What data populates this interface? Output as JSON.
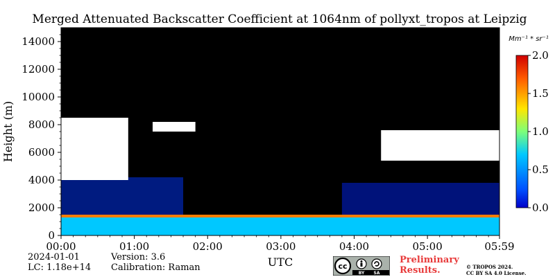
{
  "chart_data": {
    "type": "heatmap",
    "title": "Merged Attenuated Backscatter Coefficient at 1064nm of pollyxt_tropos at Leipzig",
    "xlabel": "UTC",
    "ylabel": "Height (m)",
    "x_ticks": [
      "00:00",
      "01:00",
      "02:00",
      "03:00",
      "04:00",
      "05:00",
      "05:59"
    ],
    "y_ticks": [
      "0",
      "2000",
      "4000",
      "6000",
      "8000",
      "10000",
      "12000",
      "14000"
    ],
    "xlim_minutes": [
      0,
      359
    ],
    "ylim": [
      0,
      15000
    ],
    "colorbar": {
      "label": "Mm⁻¹ * sr⁻¹",
      "ticks": [
        "0.0",
        "0.5",
        "1.0",
        "1.5",
        "2.0"
      ],
      "range": [
        0.0,
        2.0
      ],
      "colormap": "jet",
      "over_color": "#ffffff",
      "background_color": "#000000"
    },
    "layers": [
      {
        "feature": "aerosol boundary layer",
        "t_start_min": 0,
        "t_end_min": 359,
        "base_m": 0,
        "top_m": 1300,
        "value": 0.7
      },
      {
        "feature": "thin aerosol layer top",
        "t_start_min": 0,
        "t_end_min": 359,
        "base_m": 1300,
        "top_m": 1500,
        "value": 1.6
      },
      {
        "feature": "noisy aerosol region",
        "t_start_min": 0,
        "t_end_min": 100,
        "base_m": 1500,
        "top_m": 4200,
        "value": 0.15
      },
      {
        "feature": "noisy aerosol region",
        "t_start_min": 230,
        "t_end_min": 359,
        "base_m": 1500,
        "top_m": 3800,
        "value": 0.1
      },
      {
        "feature": "cloud",
        "t_start_min": 0,
        "t_end_min": 55,
        "base_m": 4000,
        "top_m": 8500,
        "value": 2.5
      },
      {
        "feature": "cloud",
        "t_start_min": 75,
        "t_end_min": 110,
        "base_m": 7500,
        "top_m": 8200,
        "value": 2.5
      },
      {
        "feature": "cloud",
        "t_start_min": 262,
        "t_end_min": 359,
        "base_m": 5400,
        "top_m": 7600,
        "value": 2.5
      }
    ]
  },
  "footer": {
    "date": "2024-01-01",
    "lc": "LC: 1.18e+14",
    "version": "Version: 3.6",
    "calibration": "Calibration: Raman",
    "preliminary_line1": "Preliminary",
    "preliminary_line2": "Results.",
    "copyright_line1": "© TROPOS 2024.",
    "copyright_line2": "CC BY SA 4.0 License.",
    "license_badge": {
      "icon": "cc-by-sa-icon",
      "label_by": "BY",
      "label_sa": "SA"
    }
  }
}
